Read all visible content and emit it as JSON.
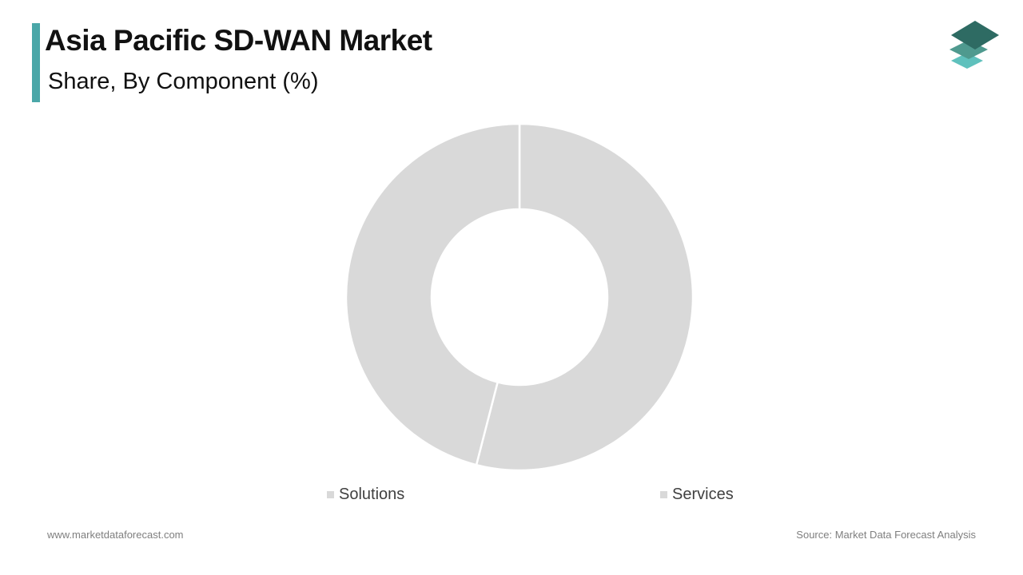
{
  "header": {
    "title": "Asia Pacific SD-WAN Market",
    "subtitle": "Share, By Component (%)"
  },
  "logo": {
    "icon": "stacked-layers-logo",
    "colors": [
      "#2e6b63",
      "#4f9a8f",
      "#5fc1bd"
    ]
  },
  "footer": {
    "website": "www.marketdataforecast.com",
    "source": "Source: Market Data Forecast Analysis"
  },
  "colors": {
    "accent": "#4aa7a8",
    "slice": "#d9d9d9",
    "slice_border": "#ffffff"
  },
  "chart_data": {
    "type": "pie",
    "variant": "donut",
    "categories": [
      "Solutions",
      "Services"
    ],
    "values": [
      54,
      46
    ],
    "unit": "%",
    "legend": "bottom",
    "colors": [
      "#d9d9d9",
      "#d9d9d9"
    ]
  }
}
